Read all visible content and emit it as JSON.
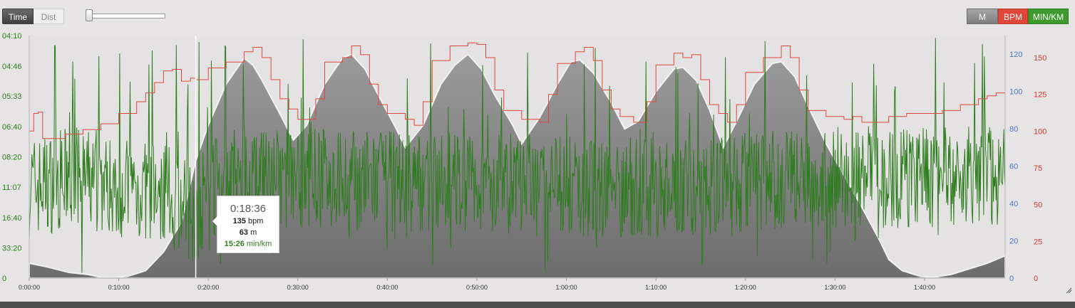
{
  "toolbar": {
    "time_label": "Time",
    "dist_label": "Dist",
    "m_label": "M",
    "bpm_label": "BPM",
    "minkm_label": "MIN/KM"
  },
  "colors": {
    "altitude": "#a3a3a3",
    "heart_rate": "#e0473a",
    "pace": "#2f7d20",
    "altitude_axis": "#4a76b8",
    "hr_axis": "#d0392b",
    "pace_axis": "#2f7d20"
  },
  "tooltip": {
    "time": "0:18:36",
    "bpm_value": "135",
    "bpm_unit": "bpm",
    "m_value": "63",
    "m_unit": "m",
    "pace_value": "15:26",
    "pace_unit": "min/km"
  },
  "chart_data": {
    "type": "area",
    "x_unit": "elapsed time (h:mm:ss)",
    "x_range": [
      "0:00:00",
      "1:49:00"
    ],
    "x_ticks": [
      "0:00:00",
      "0:10:00",
      "0:20:00",
      "0:30:00",
      "0:40:00",
      "0:50:00",
      "1:00:00",
      "1:10:00",
      "1:20:00",
      "1:30:00",
      "1:40:00"
    ],
    "cursor_time": "0:18:36",
    "axes": {
      "pace_left": {
        "ticks": [
          "04:10",
          "04:46",
          "05:33",
          "06:40",
          "08:20",
          "11:07",
          "16:40",
          "33:20",
          "0"
        ]
      },
      "altitude_right": {
        "ticks": [
          "120",
          "100",
          "80",
          "60",
          "40",
          "20",
          "0"
        ],
        "range": [
          0,
          130
        ]
      },
      "heart_rate_right": {
        "ticks": [
          "150",
          "125",
          "100",
          "75",
          "50",
          "25",
          "0"
        ],
        "range": [
          0,
          165
        ]
      }
    },
    "series": [
      {
        "name": "M",
        "unit": "m",
        "style": "area",
        "color": "#a3a3a3",
        "points": [
          [
            "0:00:00",
            8
          ],
          [
            "0:02:00",
            6
          ],
          [
            "0:04:30",
            3
          ],
          [
            "0:06:30",
            2
          ],
          [
            "0:08:00",
            0.5
          ],
          [
            "0:09:30",
            0.3
          ],
          [
            "0:11:00",
            1
          ],
          [
            "0:13:00",
            4
          ],
          [
            "0:15:00",
            14
          ],
          [
            "0:17:00",
            30
          ],
          [
            "0:18:36",
            63
          ],
          [
            "0:20:00",
            82
          ],
          [
            "0:22:00",
            104
          ],
          [
            "0:24:00",
            118
          ],
          [
            "0:25:00",
            114
          ],
          [
            "0:26:00",
            106
          ],
          [
            "0:28:00",
            88
          ],
          [
            "0:29:30",
            74
          ],
          [
            "0:31:00",
            82
          ],
          [
            "0:33:00",
            104
          ],
          [
            "0:35:00",
            118
          ],
          [
            "0:36:00",
            120
          ],
          [
            "0:37:30",
            112
          ],
          [
            "0:39:00",
            98
          ],
          [
            "0:41:00",
            80
          ],
          [
            "0:42:00",
            70
          ],
          [
            "0:44:00",
            82
          ],
          [
            "0:46:00",
            104
          ],
          [
            "0:47:30",
            114
          ],
          [
            "0:49:00",
            120
          ],
          [
            "0:50:30",
            112
          ],
          [
            "0:52:00",
            98
          ],
          [
            "0:54:00",
            82
          ],
          [
            "0:55:00",
            72
          ],
          [
            "0:57:00",
            86
          ],
          [
            "0:59:00",
            104
          ],
          [
            "1:00:30",
            116
          ],
          [
            "1:01:30",
            117
          ],
          [
            "1:03:00",
            110
          ],
          [
            "1:05:00",
            94
          ],
          [
            "1:06:30",
            80
          ],
          [
            "1:08:00",
            84
          ],
          [
            "1:10:00",
            100
          ],
          [
            "1:12:00",
            112
          ],
          [
            "1:13:00",
            113
          ],
          [
            "1:14:30",
            106
          ],
          [
            "1:16:00",
            90
          ],
          [
            "1:17:30",
            70
          ],
          [
            "1:19:00",
            84
          ],
          [
            "1:21:00",
            104
          ],
          [
            "1:23:00",
            115
          ],
          [
            "1:24:00",
            116
          ],
          [
            "1:25:30",
            108
          ],
          [
            "1:27:00",
            92
          ],
          [
            "1:29:00",
            72
          ],
          [
            "1:31:00",
            55
          ],
          [
            "1:33:00",
            38
          ],
          [
            "1:35:00",
            20
          ],
          [
            "1:36:00",
            10
          ],
          [
            "1:37:30",
            4
          ],
          [
            "1:39:30",
            1
          ],
          [
            "1:41:00",
            0.5
          ],
          [
            "1:43:00",
            2
          ],
          [
            "1:45:00",
            5
          ],
          [
            "1:47:00",
            8
          ],
          [
            "1:49:00",
            12
          ]
        ]
      },
      {
        "name": "BPM",
        "unit": "bpm",
        "style": "line",
        "color": "#e0473a",
        "points": [
          [
            "0:00:00",
            100
          ],
          [
            "0:00:30",
            112
          ],
          [
            "0:01:00",
            113
          ],
          [
            "0:01:30",
            95
          ],
          [
            "0:02:30",
            95
          ],
          [
            "0:04:00",
            98
          ],
          [
            "0:06:00",
            101
          ],
          [
            "0:08:00",
            105
          ],
          [
            "0:10:00",
            112
          ],
          [
            "0:12:00",
            120
          ],
          [
            "0:13:00",
            126
          ],
          [
            "0:14:00",
            133
          ],
          [
            "0:15:00",
            141
          ],
          [
            "0:16:00",
            142
          ],
          [
            "0:17:00",
            134
          ],
          [
            "0:18:00",
            136
          ],
          [
            "0:18:36",
            135
          ],
          [
            "0:20:00",
            143
          ],
          [
            "0:22:00",
            147
          ],
          [
            "0:24:00",
            154
          ],
          [
            "0:25:00",
            157
          ],
          [
            "0:26:00",
            150
          ],
          [
            "0:27:00",
            135
          ],
          [
            "0:28:00",
            122
          ],
          [
            "0:29:00",
            115
          ],
          [
            "0:30:00",
            108
          ],
          [
            "0:31:00",
            108
          ],
          [
            "0:32:00",
            122
          ],
          [
            "0:33:00",
            147
          ],
          [
            "0:35:00",
            150
          ],
          [
            "0:36:00",
            158
          ],
          [
            "0:37:00",
            152
          ],
          [
            "0:38:00",
            132
          ],
          [
            "0:39:00",
            118
          ],
          [
            "0:40:00",
            112
          ],
          [
            "0:42:00",
            108
          ],
          [
            "0:43:00",
            104
          ],
          [
            "0:44:00",
            120
          ],
          [
            "0:45:00",
            148
          ],
          [
            "0:47:00",
            158
          ],
          [
            "0:49:00",
            160
          ],
          [
            "0:50:00",
            159
          ],
          [
            "0:51:00",
            150
          ],
          [
            "0:52:00",
            128
          ],
          [
            "0:53:00",
            114
          ],
          [
            "0:55:00",
            108
          ],
          [
            "0:57:00",
            106
          ],
          [
            "0:58:00",
            125
          ],
          [
            "0:59:00",
            146
          ],
          [
            "1:01:00",
            154
          ],
          [
            "1:02:00",
            157
          ],
          [
            "1:03:00",
            148
          ],
          [
            "1:04:00",
            128
          ],
          [
            "1:05:00",
            115
          ],
          [
            "1:06:00",
            110
          ],
          [
            "1:07:30",
            106
          ],
          [
            "1:09:00",
            120
          ],
          [
            "1:10:00",
            145
          ],
          [
            "1:12:00",
            153
          ],
          [
            "1:13:00",
            150
          ],
          [
            "1:14:00",
            152
          ],
          [
            "1:15:00",
            135
          ],
          [
            "1:16:00",
            118
          ],
          [
            "1:17:00",
            112
          ],
          [
            "1:18:00",
            106
          ],
          [
            "1:19:00",
            118
          ],
          [
            "1:20:00",
            140
          ],
          [
            "1:22:00",
            150
          ],
          [
            "1:24:00",
            158
          ],
          [
            "1:25:00",
            150
          ],
          [
            "1:26:00",
            128
          ],
          [
            "1:27:00",
            114
          ],
          [
            "1:29:00",
            110
          ],
          [
            "1:31:00",
            108
          ],
          [
            "1:32:00",
            110
          ],
          [
            "1:33:00",
            106
          ],
          [
            "1:35:00",
            106
          ],
          [
            "1:36:00",
            110
          ],
          [
            "1:38:00",
            112
          ],
          [
            "1:40:00",
            112
          ],
          [
            "1:42:00",
            114
          ],
          [
            "1:44:00",
            118
          ],
          [
            "1:46:00",
            122
          ],
          [
            "1:47:00",
            124
          ],
          [
            "1:48:00",
            126
          ],
          [
            "1:49:00",
            128
          ]
        ]
      },
      {
        "name": "MIN/KM",
        "unit": "min/km",
        "style": "line",
        "color": "#2f7d20",
        "note_values": "noisy pace trace oscillating mostly between 08:20 and 16:40 min/km, spikes toward 04:10",
        "points": [
          [
            "0:00:00",
            "11:07"
          ],
          [
            "0:05:00",
            "10:00"
          ],
          [
            "0:10:00",
            "11:07"
          ],
          [
            "0:15:00",
            "12:00"
          ],
          [
            "0:18:36",
            "15:26"
          ],
          [
            "0:20:00",
            "11:07"
          ],
          [
            "0:30:00",
            "10:00"
          ],
          [
            "0:40:00",
            "10:30"
          ],
          [
            "0:50:00",
            "10:30"
          ],
          [
            "1:00:00",
            "11:07"
          ],
          [
            "1:10:00",
            "11:07"
          ],
          [
            "1:20:00",
            "10:30"
          ],
          [
            "1:30:00",
            "10:00"
          ],
          [
            "1:40:00",
            "10:00"
          ],
          [
            "1:49:00",
            "10:00"
          ]
        ]
      }
    ]
  }
}
